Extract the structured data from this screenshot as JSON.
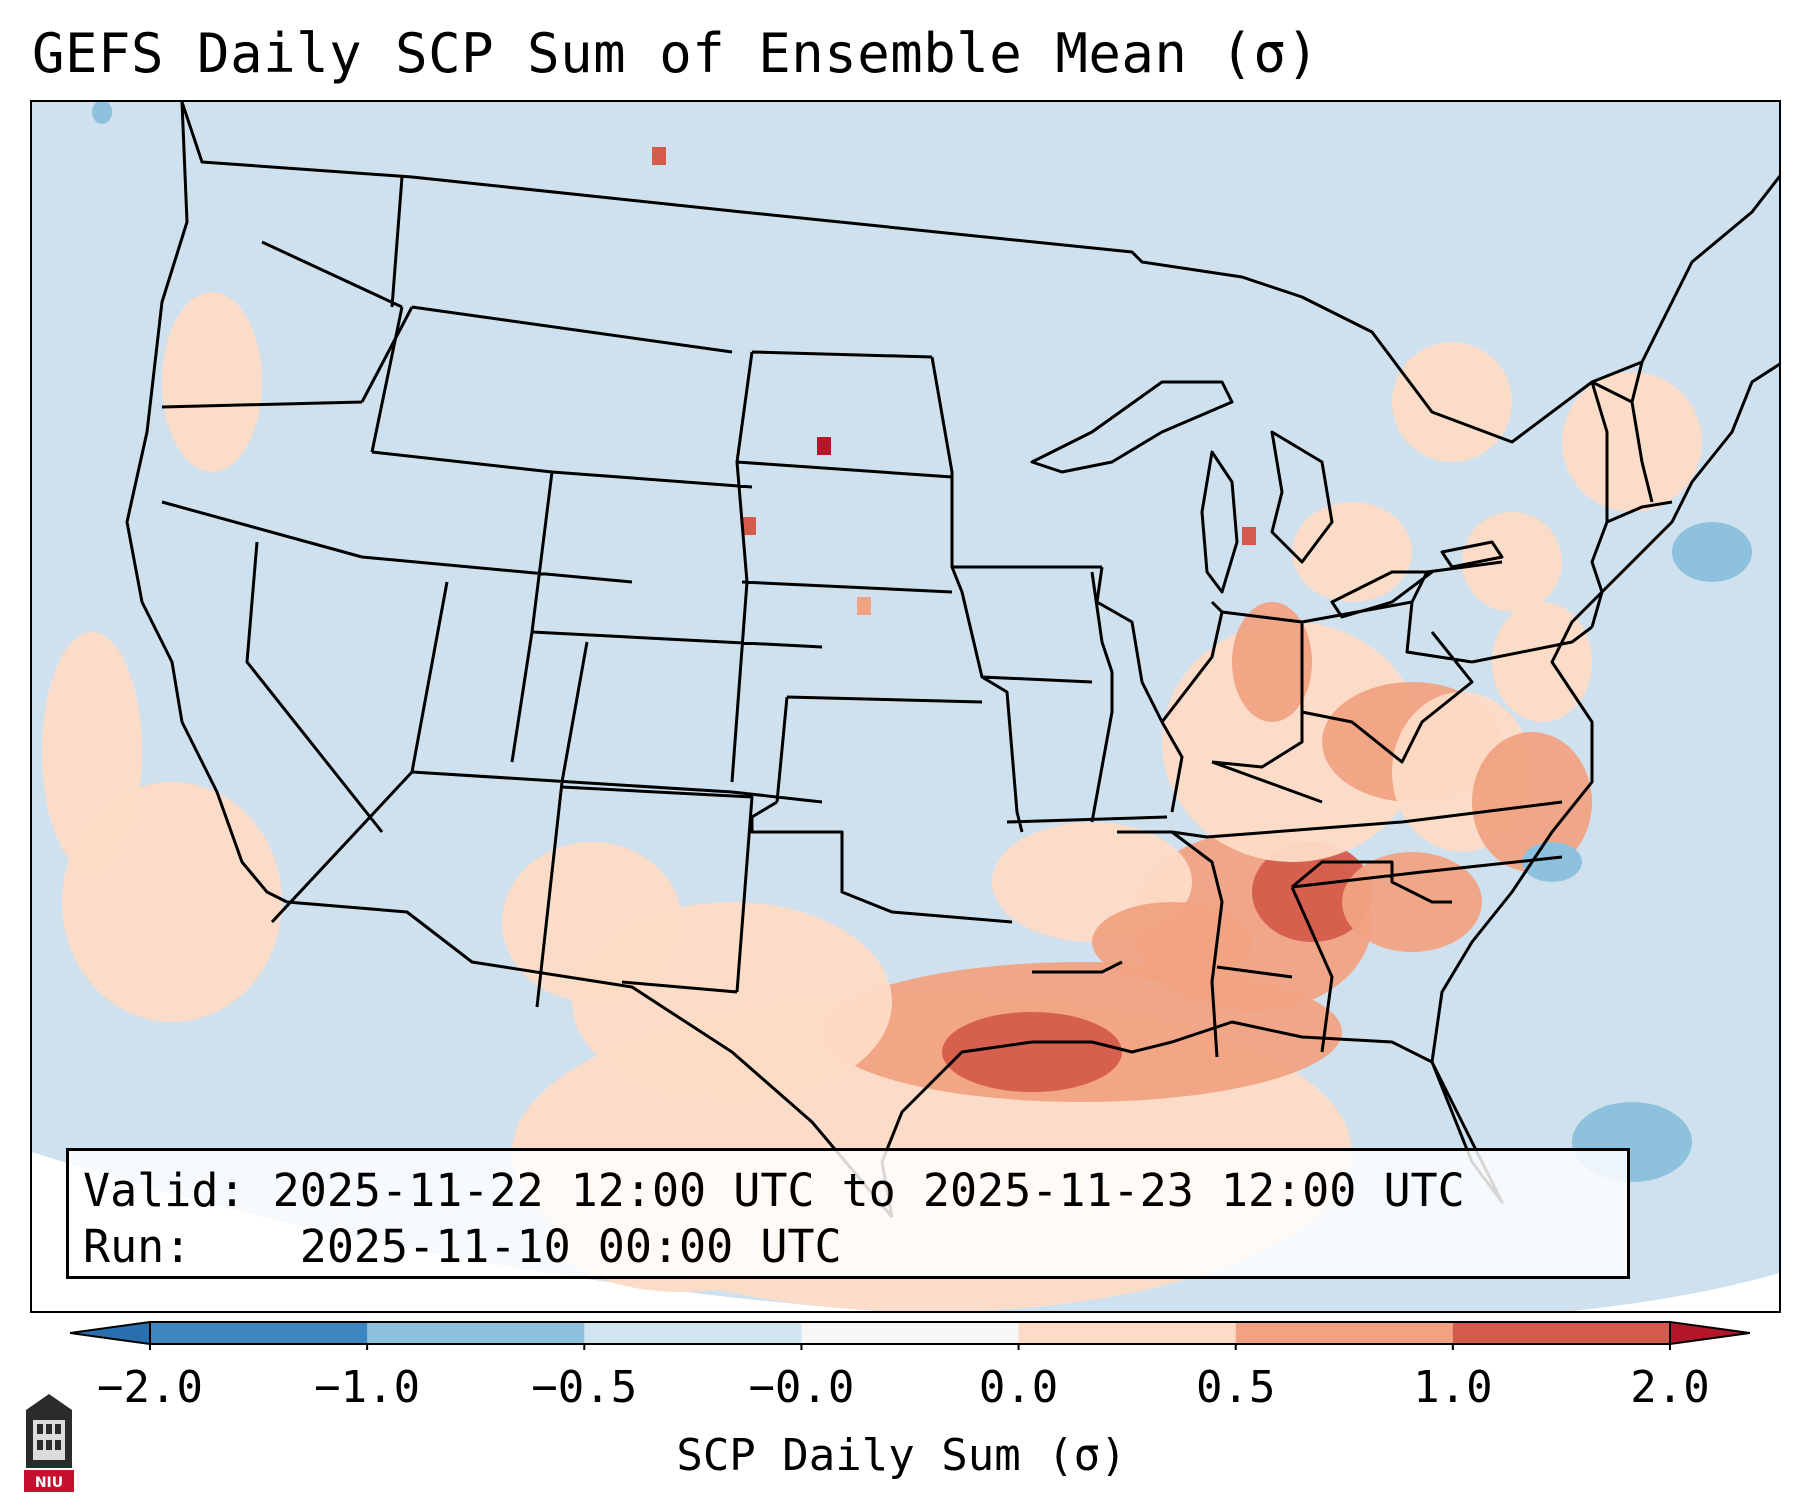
{
  "title": "GEFS Daily SCP Sum of Ensemble Mean (σ)",
  "info": {
    "valid_label": "Valid:",
    "valid_value": "2025-11-22 12:00 UTC to 2025-11-23 12:00 UTC",
    "run_label": "Run:",
    "run_value": "2025-11-10 00:00 UTC"
  },
  "colorbar": {
    "label": "SCP Daily Sum (σ)",
    "ticks": [
      "−2.0",
      "−1.0",
      "−0.5",
      "−0.0",
      "0.0",
      "0.5",
      "1.0",
      "2.0"
    ],
    "colors": [
      "#3d85bf",
      "#8ec1de",
      "#d1e4ef",
      "#f7f7f7",
      "#fddbc6",
      "#f1a282",
      "#d45b4b"
    ],
    "under_color": "#2a70b0",
    "over_color": "#b4172a"
  },
  "map": {
    "ocean_land_background": "#cfe1ee",
    "off_projection_color": "#ffffff",
    "region": "Contiguous United States, Gulf of Mexico and adjacent Canada/Mexico"
  },
  "logo": {
    "text": "NIU",
    "color": "#c8102e"
  }
}
